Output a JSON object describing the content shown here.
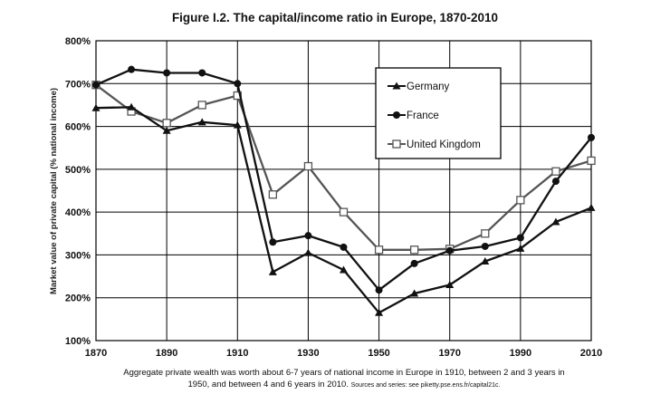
{
  "chart_data": {
    "type": "line",
    "title": "Figure I.2. The capital/income ratio in Europe, 1870-2010",
    "ylabel": "Market value of private capital (% national income)",
    "xlabel": "",
    "x": [
      1870,
      1880,
      1890,
      1900,
      1910,
      1920,
      1930,
      1940,
      1950,
      1960,
      1970,
      1980,
      1990,
      2000,
      2010
    ],
    "xlim": [
      1870,
      2010
    ],
    "ylim": [
      100,
      800
    ],
    "x_ticks": [
      "1870",
      "1890",
      "1910",
      "1930",
      "1950",
      "1970",
      "1990",
      "2010"
    ],
    "y_ticks": [
      "100%",
      "200%",
      "300%",
      "400%",
      "500%",
      "600%",
      "700%",
      "800%"
    ],
    "grid": true,
    "legend_position": "top-right",
    "series": [
      {
        "name": "Germany",
        "marker": "triangle",
        "color": "#111111",
        "values": [
          643,
          645,
          590,
          610,
          603,
          260,
          305,
          265,
          165,
          210,
          230,
          285,
          315,
          377,
          410
        ]
      },
      {
        "name": "France",
        "marker": "circle",
        "color": "#111111",
        "values": [
          697,
          733,
          725,
          725,
          700,
          330,
          345,
          318,
          218,
          280,
          310,
          320,
          340,
          472,
          574
        ]
      },
      {
        "name": "United Kingdom",
        "marker": "square-open",
        "color": "#555555",
        "values": [
          697,
          635,
          608,
          650,
          672,
          441,
          507,
          400,
          312,
          312,
          314,
          350,
          428,
          495,
          520
        ]
      }
    ]
  },
  "caption": {
    "line1": "Aggregate private wealth was worth about 6-7 years of national income in Europe in 1910, between 2 and 3 years in",
    "line2": "1950, and between 4 and 6 years in 2010.",
    "source": "Sources and series: see piketty.pse.ens.fr/capital21c."
  }
}
